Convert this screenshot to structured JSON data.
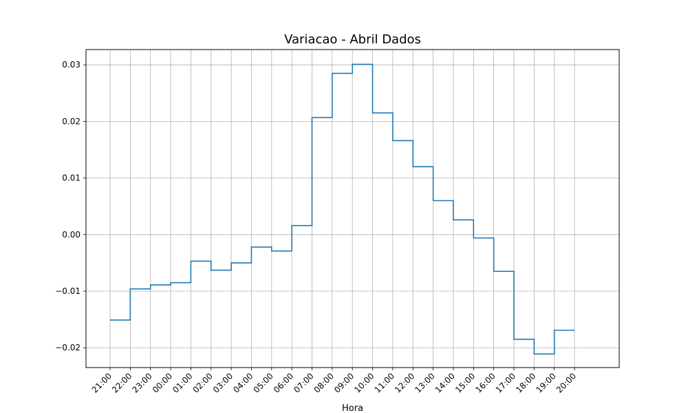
{
  "chart_data": {
    "type": "line",
    "title": "Variacao - Abril Dados",
    "xlabel": "Hora",
    "ylabel": "",
    "x_tick_labels": [
      "21:00",
      "22:00",
      "23:00",
      "00:00",
      "01:00",
      "02:00",
      "03:00",
      "04:00",
      "05:00",
      "06:00",
      "07:00",
      "08:00",
      "09:00",
      "10:00",
      "11:00",
      "12:00",
      "13:00",
      "14:00",
      "15:00",
      "16:00",
      "17:00",
      "18:00",
      "19:00",
      "20:00"
    ],
    "y_ticks": [
      -0.02,
      -0.01,
      0.0,
      0.01,
      0.02,
      0.03
    ],
    "y_tick_labels": [
      "−0.02",
      "−0.01",
      "0.00",
      "0.01",
      "0.02",
      "0.03"
    ],
    "ylim": [
      -0.0235,
      0.0327
    ],
    "grid": true,
    "step_style": "post",
    "series": [
      {
        "color": "#1f77b4",
        "x": [
          "21:00",
          "22:00",
          "23:00",
          "00:00",
          "01:00",
          "02:00",
          "03:00",
          "04:00",
          "05:00",
          "06:00",
          "07:00",
          "08:00",
          "09:00",
          "10:00",
          "11:00",
          "12:00",
          "13:00",
          "14:00",
          "15:00",
          "16:00",
          "17:00",
          "18:00",
          "19:00",
          "20:00"
        ],
        "values": [
          -0.0151,
          -0.0096,
          -0.0089,
          -0.0085,
          -0.0047,
          -0.0063,
          -0.005,
          -0.0022,
          -0.0029,
          0.0016,
          0.0207,
          0.0285,
          0.0301,
          0.0215,
          0.0166,
          0.012,
          0.006,
          0.0026,
          -0.0006,
          -0.0065,
          -0.0185,
          -0.0211,
          -0.0169,
          -0.0169
        ]
      }
    ]
  }
}
